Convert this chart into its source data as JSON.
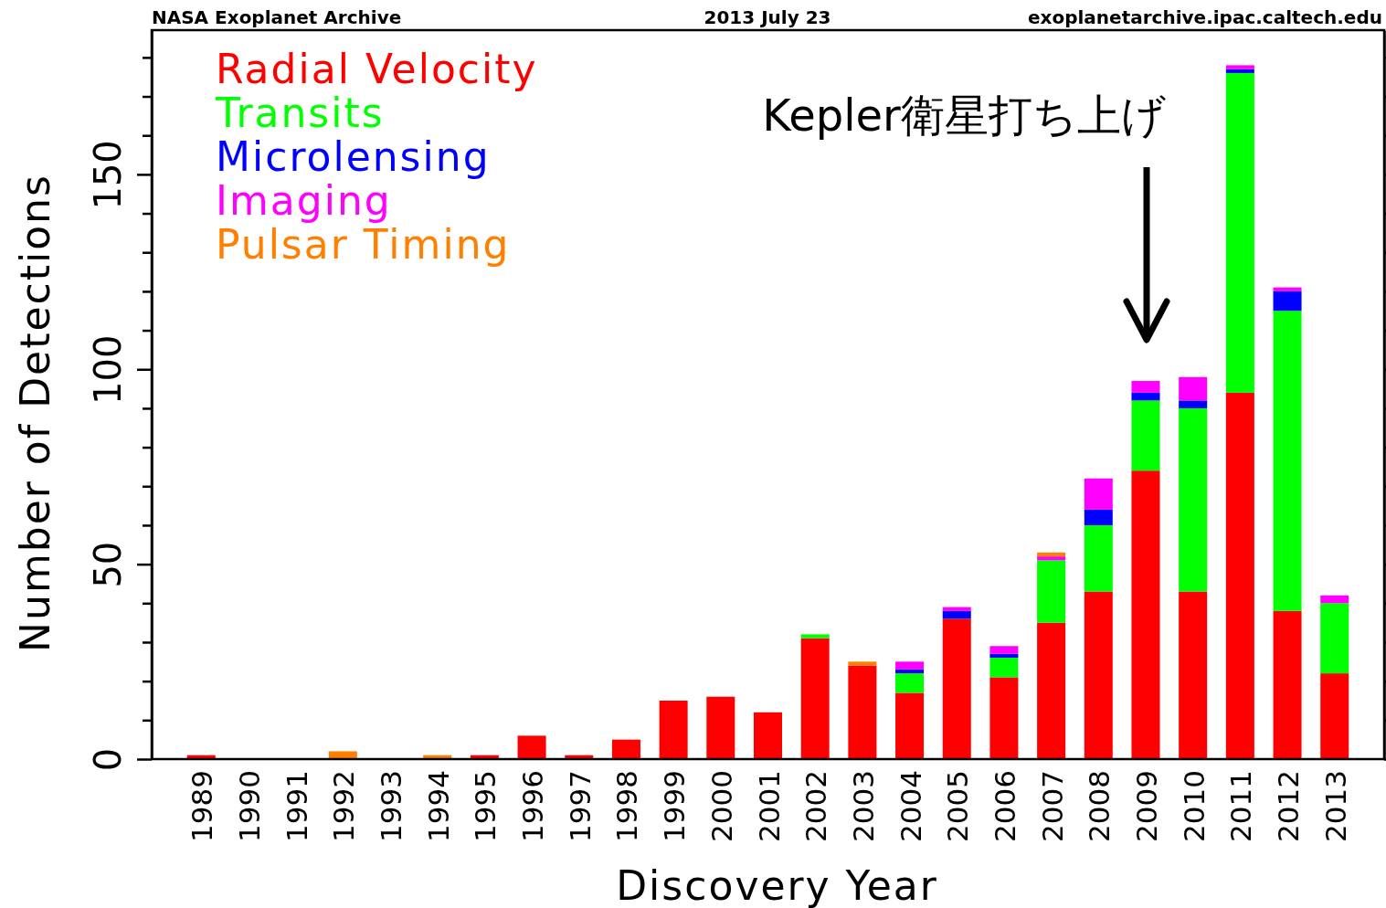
{
  "chart_data": {
    "type": "bar",
    "stacked": true,
    "xlabel": "Discovery Year",
    "ylabel": "Number of Detections",
    "categories": [
      "1989",
      "1990",
      "1991",
      "1992",
      "1993",
      "1994",
      "1995",
      "1996",
      "1997",
      "1998",
      "1999",
      "2000",
      "2001",
      "2002",
      "2003",
      "2004",
      "2005",
      "2006",
      "2007",
      "2008",
      "2009",
      "2010",
      "2011",
      "2012",
      "2013"
    ],
    "series": [
      {
        "name": "Radial Velocity",
        "color": "#ff0000",
        "values": [
          1,
          0,
          0,
          0,
          0,
          0,
          1,
          6,
          1,
          5,
          15,
          16,
          12,
          31,
          24,
          17,
          36,
          21,
          35,
          43,
          74,
          43,
          94,
          38,
          22
        ]
      },
      {
        "name": "Transits",
        "color": "#00ff00",
        "values": [
          0,
          0,
          0,
          0,
          0,
          0,
          0,
          0,
          0,
          0,
          0,
          0,
          0,
          1,
          0,
          5,
          0,
          5,
          16,
          17,
          18,
          47,
          82,
          77,
          18
        ]
      },
      {
        "name": "Microlensing",
        "color": "#0000ff",
        "values": [
          0,
          0,
          0,
          0,
          0,
          0,
          0,
          0,
          0,
          0,
          0,
          0,
          0,
          0,
          0,
          1,
          2,
          1,
          0,
          4,
          2,
          2,
          1,
          5,
          0
        ]
      },
      {
        "name": "Imaging",
        "color": "#ff00ff",
        "values": [
          0,
          0,
          0,
          0,
          0,
          0,
          0,
          0,
          0,
          0,
          0,
          0,
          0,
          0,
          0,
          2,
          1,
          2,
          1,
          8,
          3,
          6,
          1,
          1,
          2
        ]
      },
      {
        "name": "Pulsar Timing",
        "color": "#ff8000",
        "values": [
          0,
          0,
          0,
          2,
          0,
          1,
          0,
          0,
          0,
          0,
          0,
          0,
          0,
          0,
          1,
          0,
          0,
          0,
          1,
          0,
          0,
          0,
          0,
          0,
          0
        ]
      }
    ],
    "ylim": [
      0,
      187
    ],
    "yticks": [
      0,
      {
        "value": 10,
        "label": null
      },
      {
        "value": 20,
        "label": null
      },
      {
        "value": 30,
        "label": null
      },
      {
        "value": 40,
        "label": null
      },
      50,
      {
        "value": 60,
        "label": null
      },
      {
        "value": 70,
        "label": null
      },
      {
        "value": 80,
        "label": null
      },
      {
        "value": 90,
        "label": null
      },
      100,
      {
        "value": 110,
        "label": null
      },
      {
        "value": 120,
        "label": null
      },
      {
        "value": 130,
        "label": null
      },
      {
        "value": 140,
        "label": null
      },
      150,
      {
        "value": 160,
        "label": null
      },
      {
        "value": 170,
        "label": null
      },
      {
        "value": 180,
        "label": null
      }
    ],
    "legend": "top left",
    "annotations": [
      "NASA Exoplanet Archive",
      "2013 July 23",
      "exoplanetarchive.ipac.caltech.edu",
      "Kepler衛星打ち上げ"
    ]
  }
}
